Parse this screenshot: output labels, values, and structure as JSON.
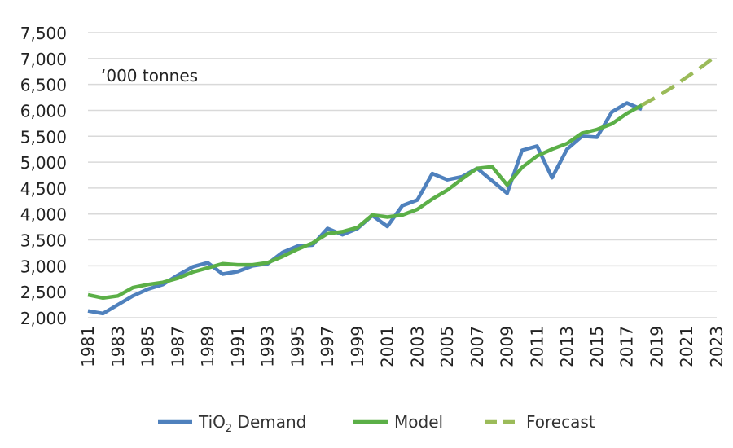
{
  "chart_data": {
    "type": "line",
    "unit_label": "‘000 tonnes",
    "title": "",
    "xlabel": "",
    "ylabel": "",
    "x": [
      1981,
      1982,
      1983,
      1984,
      1985,
      1986,
      1987,
      1988,
      1989,
      1990,
      1991,
      1992,
      1993,
      1994,
      1995,
      1996,
      1997,
      1998,
      1999,
      2000,
      2001,
      2002,
      2003,
      2004,
      2005,
      2006,
      2007,
      2008,
      2009,
      2010,
      2011,
      2012,
      2013,
      2014,
      2015,
      2016,
      2017,
      2018,
      2019,
      2020,
      2021,
      2022,
      2023
    ],
    "x_tick_labels": [
      "1981",
      "1983",
      "1985",
      "1987",
      "1989",
      "1991",
      "1993",
      "1995",
      "1997",
      "1999",
      "2001",
      "2003",
      "2005",
      "2007",
      "2009",
      "2011",
      "2013",
      "2015",
      "2017",
      "2019",
      "2021",
      "2023"
    ],
    "y_tick_labels": [
      "2,000",
      "2,500",
      "3,000",
      "3,500",
      "4,000",
      "4,500",
      "5,000",
      "5,500",
      "6,000",
      "6,500",
      "7,000",
      "7,500"
    ],
    "ylim": [
      2000,
      7500
    ],
    "y_step": 500,
    "grid": true,
    "legend_position": "bottom",
    "series": [
      {
        "name": "TiO2 Demand",
        "legend_main": "TiO",
        "legend_sub": "2",
        "legend_rest": " Demand",
        "color": "#4F81BD",
        "dashed": false,
        "x": [
          1981,
          1982,
          1983,
          1984,
          1985,
          1986,
          1987,
          1988,
          1989,
          1990,
          1991,
          1992,
          1993,
          1994,
          1995,
          1996,
          1997,
          1998,
          1999,
          2000,
          2001,
          2002,
          2003,
          2004,
          2005,
          2006,
          2007,
          2008,
          2009,
          2010,
          2011,
          2012,
          2013,
          2014,
          2015,
          2016,
          2017,
          2018
        ],
        "values": [
          2130,
          2080,
          2250,
          2420,
          2550,
          2640,
          2820,
          2980,
          3060,
          2840,
          2890,
          3000,
          3040,
          3260,
          3380,
          3400,
          3720,
          3600,
          3720,
          3970,
          3760,
          4160,
          4270,
          4780,
          4660,
          4720,
          4880,
          4640,
          4400,
          5230,
          5310,
          4700,
          5250,
          5500,
          5480,
          5970,
          6140,
          6020
        ]
      },
      {
        "name": "Model",
        "legend_main": "Model",
        "legend_sub": "",
        "legend_rest": "",
        "color": "#5BAF47",
        "dashed": false,
        "x": [
          1981,
          1982,
          1983,
          1984,
          1985,
          1986,
          1987,
          1988,
          1989,
          1990,
          1991,
          1992,
          1993,
          1994,
          1995,
          1996,
          1997,
          1998,
          1999,
          2000,
          2001,
          2002,
          2003,
          2004,
          2005,
          2006,
          2007,
          2008,
          2009,
          2010,
          2011,
          2012,
          2013,
          2014,
          2015,
          2016,
          2017,
          2018
        ],
        "values": [
          2440,
          2380,
          2420,
          2580,
          2640,
          2680,
          2760,
          2880,
          2960,
          3040,
          3020,
          3020,
          3060,
          3180,
          3320,
          3440,
          3620,
          3660,
          3740,
          3980,
          3940,
          3980,
          4090,
          4290,
          4460,
          4680,
          4880,
          4910,
          4560,
          4900,
          5120,
          5250,
          5360,
          5560,
          5630,
          5740,
          5940,
          6100
        ]
      },
      {
        "name": "Forecast",
        "legend_main": "Forecast",
        "legend_sub": "",
        "legend_rest": "",
        "color": "#9BBB59",
        "dashed": true,
        "x": [
          2018,
          2019,
          2020,
          2021,
          2022,
          2023
        ],
        "values": [
          6100,
          6260,
          6440,
          6640,
          6840,
          7060
        ]
      }
    ]
  }
}
